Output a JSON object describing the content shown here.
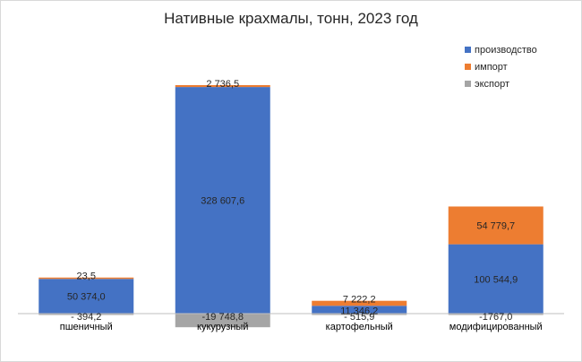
{
  "chart_data": {
    "type": "bar",
    "stacked": true,
    "title": "Нативные крахмалы, тонн, 2023 год",
    "categories": [
      "пшеничный",
      "кукурузный",
      "картофельный",
      "модифицированный"
    ],
    "series": [
      {
        "name": "производство",
        "color": "#4472c4",
        "values": [
          50374.0,
          328607.6,
          11346.2,
          100544.9
        ],
        "labels": [
          "50 374,0",
          "328 607,6",
          "11 346,2",
          "100 544,9"
        ]
      },
      {
        "name": "импорт",
        "color": "#ed7d31",
        "values": [
          23.5,
          2736.5,
          7222.2,
          54779.7
        ],
        "labels": [
          "23,5",
          "2 736,5",
          "7 222,2",
          "54 779,7"
        ]
      },
      {
        "name": "экспорт",
        "color": "#a5a5a5",
        "values": [
          -394.2,
          -19748.8,
          -515.9,
          -1767.0
        ],
        "labels": [
          "- 394,2",
          "-19 748,8",
          "- 515,9",
          "-1767,0"
        ]
      }
    ],
    "legend_position": "top-right",
    "grid": false
  }
}
